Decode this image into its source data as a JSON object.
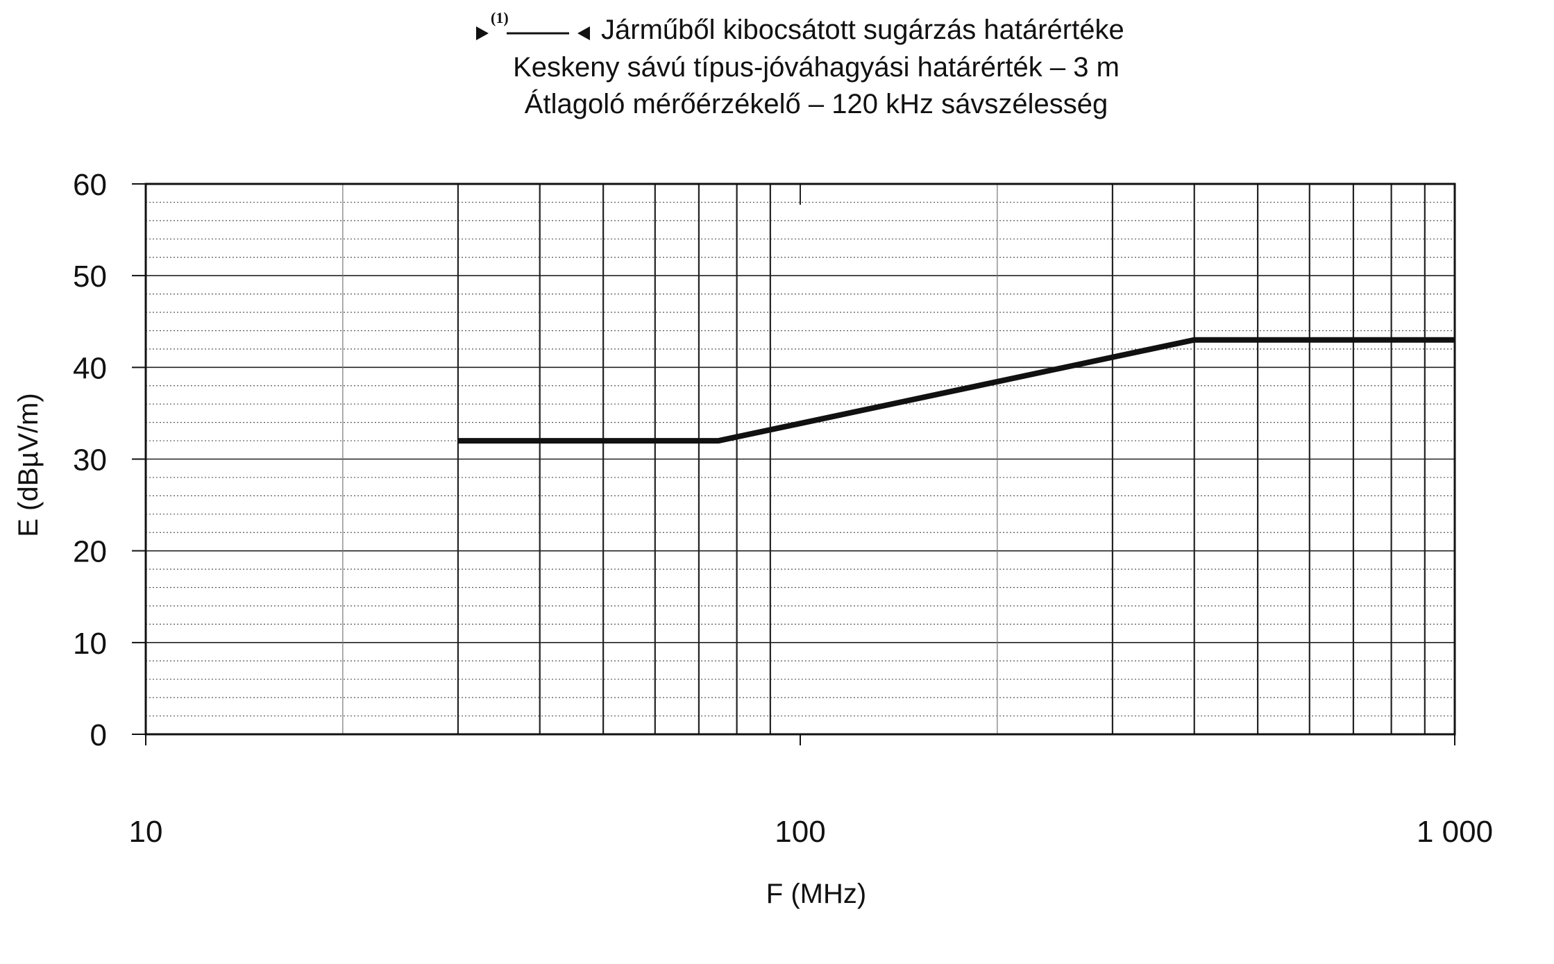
{
  "chart_data": {
    "type": "line",
    "title_marker": "(1)",
    "title": "Járműből kibocsátott sugárzás határértéke",
    "subtitle_lines": [
      "Keskeny sávú típus-jóváhagyási határérték – 3 m",
      "Átlagoló mérőérzékelő – 120 kHz sávszélesség"
    ],
    "xlabel": "F (MHz)",
    "ylabel": "E (dBµV/m)",
    "x_scale": "log",
    "xlim": [
      10,
      1000
    ],
    "ylim": [
      0,
      60
    ],
    "x_ticks": [
      10,
      100,
      1000
    ],
    "x_tick_labels": [
      "10",
      "100",
      "1 000"
    ],
    "y_ticks": [
      0,
      10,
      20,
      30,
      40,
      50,
      60
    ],
    "y_tick_labels": [
      "0",
      "10",
      "20",
      "30",
      "40",
      "50",
      "60"
    ],
    "grid": true,
    "series": [
      {
        "x": [
          30,
          75,
          400,
          1000
        ],
        "y": [
          32,
          32,
          43,
          43
        ]
      }
    ]
  }
}
